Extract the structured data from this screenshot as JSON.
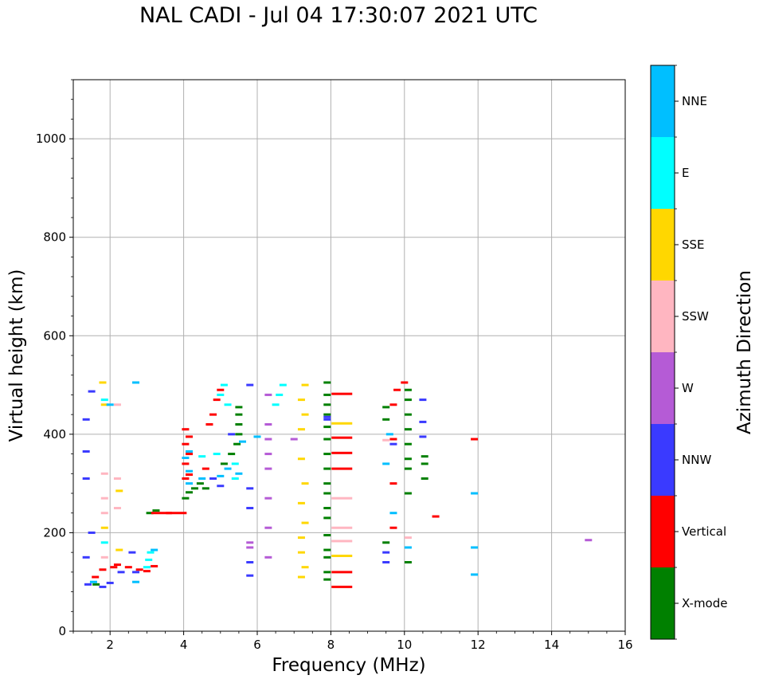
{
  "chart_data": {
    "type": "scatter",
    "title": "NAL CADI - Jul 04 17:30:07 2021 UTC",
    "xlabel": "Frequency (MHz)",
    "ylabel": "Virtual height (km)",
    "xlim": [
      1,
      16
    ],
    "ylim": [
      0,
      1120
    ],
    "xticks": [
      2,
      4,
      6,
      8,
      10,
      12,
      14,
      16
    ],
    "yticks": [
      0,
      200,
      400,
      600,
      800,
      1000
    ],
    "grid": true,
    "colorbar": {
      "label": "Azimuth Direction",
      "classes": [
        {
          "name": "X-mode",
          "color": "#008000"
        },
        {
          "name": "Vertical",
          "color": "#ff0000"
        },
        {
          "name": "NNW",
          "color": "#3a3aff"
        },
        {
          "name": "W",
          "color": "#b55bd6"
        },
        {
          "name": "SSW",
          "color": "#ffb6c1"
        },
        {
          "name": "SSE",
          "color": "#ffd700"
        },
        {
          "name": "E",
          "color": "#00ffff"
        },
        {
          "name": "NNE",
          "color": "#00bfff"
        }
      ]
    },
    "series": [
      {
        "name": "X-mode",
        "points": [
          [
            1.62,
            95
          ],
          [
            3.08,
            240
          ],
          [
            3.25,
            245
          ],
          [
            4.05,
            270
          ],
          [
            4.15,
            282
          ],
          [
            4.3,
            290
          ],
          [
            4.45,
            300
          ],
          [
            4.6,
            290
          ],
          [
            5.1,
            340
          ],
          [
            5.3,
            360
          ],
          [
            5.45,
            380
          ],
          [
            5.5,
            400
          ],
          [
            5.5,
            420
          ],
          [
            5.5,
            440
          ],
          [
            5.5,
            455
          ],
          [
            7.9,
            105
          ],
          [
            7.9,
            120
          ],
          [
            7.9,
            150
          ],
          [
            7.9,
            165
          ],
          [
            7.9,
            195
          ],
          [
            7.9,
            230
          ],
          [
            7.9,
            250
          ],
          [
            7.9,
            280
          ],
          [
            7.9,
            300
          ],
          [
            7.9,
            330
          ],
          [
            7.9,
            360
          ],
          [
            7.9,
            390
          ],
          [
            7.9,
            415
          ],
          [
            7.9,
            440
          ],
          [
            7.9,
            460
          ],
          [
            7.9,
            480
          ],
          [
            7.9,
            505
          ],
          [
            9.5,
            180
          ],
          [
            9.5,
            430
          ],
          [
            9.5,
            455
          ],
          [
            10.1,
            140
          ],
          [
            10.1,
            280
          ],
          [
            10.1,
            330
          ],
          [
            10.1,
            350
          ],
          [
            10.1,
            380
          ],
          [
            10.1,
            410
          ],
          [
            10.1,
            440
          ],
          [
            10.1,
            470
          ],
          [
            10.1,
            490
          ],
          [
            10.55,
            310
          ],
          [
            10.55,
            340
          ],
          [
            10.55,
            355
          ]
        ]
      },
      {
        "name": "Vertical",
        "points": [
          [
            1.6,
            110
          ],
          [
            1.8,
            125
          ],
          [
            2.1,
            130
          ],
          [
            2.2,
            135
          ],
          [
            2.5,
            130
          ],
          [
            2.8,
            125
          ],
          [
            3.0,
            122
          ],
          [
            3.2,
            132
          ],
          [
            3.4,
            240
          ],
          [
            3.8,
            240
          ],
          [
            4.05,
            310
          ],
          [
            4.15,
            318
          ],
          [
            4.05,
            340
          ],
          [
            4.15,
            360
          ],
          [
            4.05,
            380
          ],
          [
            4.15,
            395
          ],
          [
            4.05,
            410
          ],
          [
            4.6,
            330
          ],
          [
            4.7,
            420
          ],
          [
            4.8,
            440
          ],
          [
            4.9,
            470
          ],
          [
            5.0,
            490
          ],
          [
            8.3,
            90
          ],
          [
            8.3,
            120
          ],
          [
            8.3,
            330
          ],
          [
            8.3,
            362
          ],
          [
            8.3,
            393
          ],
          [
            8.3,
            482
          ],
          [
            9.7,
            210
          ],
          [
            9.7,
            300
          ],
          [
            9.7,
            390
          ],
          [
            9.7,
            460
          ],
          [
            9.8,
            490
          ],
          [
            10.0,
            505
          ],
          [
            10.85,
            233
          ],
          [
            11.9,
            390
          ]
        ]
      },
      {
        "name": "NNW",
        "points": [
          [
            1.4,
            95
          ],
          [
            1.8,
            90
          ],
          [
            1.35,
            150
          ],
          [
            1.5,
            200
          ],
          [
            1.35,
            310
          ],
          [
            1.35,
            365
          ],
          [
            1.35,
            430
          ],
          [
            1.5,
            487
          ],
          [
            2.0,
            98
          ],
          [
            2.3,
            120
          ],
          [
            2.7,
            120
          ],
          [
            2.6,
            160
          ],
          [
            4.8,
            310
          ],
          [
            5.0,
            295
          ],
          [
            5.3,
            400
          ],
          [
            5.8,
            290
          ],
          [
            5.8,
            250
          ],
          [
            5.8,
            140
          ],
          [
            5.8,
            113
          ],
          [
            5.8,
            500
          ],
          [
            7.9,
            430
          ],
          [
            7.9,
            435
          ],
          [
            9.5,
            140
          ],
          [
            9.5,
            160
          ],
          [
            9.7,
            380
          ],
          [
            10.5,
            395
          ],
          [
            10.5,
            425
          ],
          [
            10.5,
            470
          ]
        ]
      },
      {
        "name": "W",
        "points": [
          [
            5.8,
            170
          ],
          [
            5.8,
            180
          ],
          [
            6.3,
            150
          ],
          [
            6.3,
            210
          ],
          [
            6.3,
            270
          ],
          [
            6.3,
            330
          ],
          [
            6.3,
            360
          ],
          [
            6.3,
            390
          ],
          [
            6.3,
            420
          ],
          [
            6.3,
            480
          ],
          [
            7.0,
            390
          ],
          [
            15.0,
            185
          ]
        ]
      },
      {
        "name": "SSW",
        "points": [
          [
            1.85,
            150
          ],
          [
            1.85,
            240
          ],
          [
            1.85,
            270
          ],
          [
            1.85,
            320
          ],
          [
            2.2,
            250
          ],
          [
            2.2,
            310
          ],
          [
            2.2,
            460
          ],
          [
            8.3,
            183
          ],
          [
            8.3,
            210
          ],
          [
            8.3,
            270
          ],
          [
            9.5,
            388
          ],
          [
            10.1,
            190
          ]
        ]
      },
      {
        "name": "SSE",
        "points": [
          [
            1.8,
            505
          ],
          [
            1.85,
            460
          ],
          [
            1.85,
            210
          ],
          [
            2.25,
            285
          ],
          [
            2.25,
            165
          ],
          [
            7.2,
            110
          ],
          [
            7.3,
            130
          ],
          [
            7.2,
            160
          ],
          [
            7.2,
            190
          ],
          [
            7.3,
            220
          ],
          [
            7.2,
            260
          ],
          [
            7.3,
            300
          ],
          [
            7.2,
            350
          ],
          [
            7.2,
            410
          ],
          [
            7.3,
            440
          ],
          [
            7.2,
            470
          ],
          [
            7.3,
            500
          ],
          [
            8.3,
            153
          ],
          [
            8.3,
            422
          ]
        ]
      },
      {
        "name": "E",
        "points": [
          [
            1.85,
            180
          ],
          [
            1.85,
            470
          ],
          [
            3.0,
            130
          ],
          [
            3.05,
            145
          ],
          [
            3.1,
            160
          ],
          [
            4.5,
            355
          ],
          [
            4.9,
            360
          ],
          [
            5.0,
            480
          ],
          [
            5.1,
            500
          ],
          [
            5.2,
            460
          ],
          [
            5.4,
            310
          ],
          [
            5.4,
            340
          ],
          [
            6.5,
            460
          ],
          [
            6.6,
            480
          ],
          [
            6.7,
            500
          ]
        ]
      },
      {
        "name": "NNE",
        "points": [
          [
            1.55,
            100
          ],
          [
            2.7,
            100
          ],
          [
            3.2,
            165
          ],
          [
            4.15,
            300
          ],
          [
            4.15,
            325
          ],
          [
            4.05,
            352
          ],
          [
            4.15,
            365
          ],
          [
            4.5,
            310
          ],
          [
            5.0,
            315
          ],
          [
            5.2,
            330
          ],
          [
            5.5,
            320
          ],
          [
            5.6,
            385
          ],
          [
            6.0,
            395
          ],
          [
            9.5,
            340
          ],
          [
            9.6,
            400
          ],
          [
            9.7,
            240
          ],
          [
            10.1,
            170
          ],
          [
            11.9,
            115
          ],
          [
            11.9,
            170
          ],
          [
            11.9,
            280
          ],
          [
            2.0,
            460
          ],
          [
            2.7,
            505
          ]
        ]
      }
    ]
  }
}
